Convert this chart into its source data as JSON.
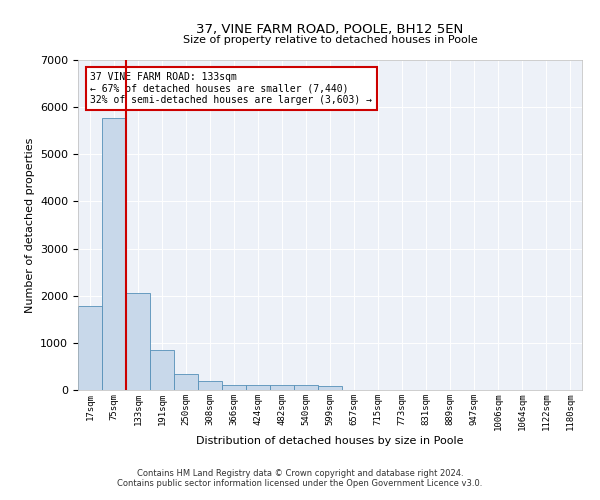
{
  "title": "37, VINE FARM ROAD, POOLE, BH12 5EN",
  "subtitle": "Size of property relative to detached houses in Poole",
  "xlabel": "Distribution of detached houses by size in Poole",
  "ylabel": "Number of detached properties",
  "categories": [
    "17sqm",
    "75sqm",
    "133sqm",
    "191sqm",
    "250sqm",
    "308sqm",
    "366sqm",
    "424sqm",
    "482sqm",
    "540sqm",
    "599sqm",
    "657sqm",
    "715sqm",
    "773sqm",
    "831sqm",
    "889sqm",
    "947sqm",
    "1006sqm",
    "1064sqm",
    "1122sqm",
    "1180sqm"
  ],
  "values": [
    1780,
    5780,
    2060,
    840,
    350,
    195,
    115,
    105,
    100,
    100,
    75,
    5,
    5,
    0,
    0,
    0,
    0,
    0,
    0,
    0,
    0
  ],
  "bar_color": "#c8d8ea",
  "bar_edge_color": "#5590b8",
  "vline_color": "#cc0000",
  "vline_index": 2,
  "annotation_text": "37 VINE FARM ROAD: 133sqm\n← 67% of detached houses are smaller (7,440)\n32% of semi-detached houses are larger (3,603) →",
  "annotation_box_color": "#cc0000",
  "ylim": [
    0,
    7000
  ],
  "yticks": [
    0,
    1000,
    2000,
    3000,
    4000,
    5000,
    6000,
    7000
  ],
  "bg_color": "#edf1f8",
  "grid_color": "#ffffff",
  "footer1": "Contains HM Land Registry data © Crown copyright and database right 2024.",
  "footer2": "Contains public sector information licensed under the Open Government Licence v3.0."
}
